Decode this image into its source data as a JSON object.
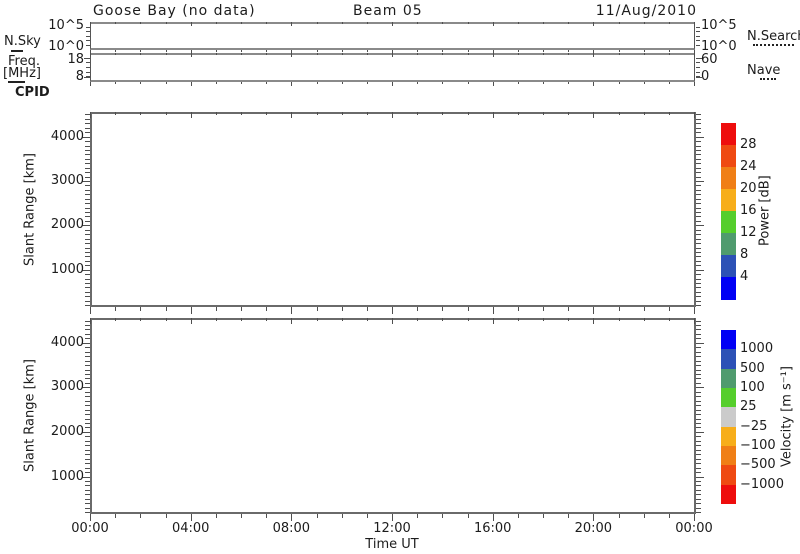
{
  "header": {
    "title": "Goose Bay (no data)",
    "beam": "Beam 05",
    "date": "11/Aug/2010"
  },
  "top_panels": {
    "nsky": {
      "label": "N.Sky",
      "left_ticks": [
        "10^5",
        "10^0"
      ],
      "right_ticks": [
        "10^5",
        "10^0"
      ],
      "right_legend": "N.Search"
    },
    "freq": {
      "label_line1": "Freq.",
      "label_line2": "[MHz]",
      "left_ticks": [
        "18",
        "8"
      ],
      "right_ticks": [
        "60",
        "0"
      ],
      "right_legend": "Nave"
    },
    "cpid_label": "CPID"
  },
  "range_panels": {
    "ylabel": "Slant Range [km]",
    "y_ticks": [
      "1000",
      "2000",
      "3000",
      "4000"
    ]
  },
  "time_axis": {
    "label": "Time UT",
    "ticks": [
      "00:00",
      "04:00",
      "08:00",
      "12:00",
      "16:00",
      "20:00",
      "00:00"
    ]
  },
  "colorbars": {
    "power": {
      "label": "Power [dB]",
      "tick_values": [
        "28",
        "24",
        "20",
        "16",
        "12",
        "8",
        "4"
      ],
      "colors_top_to_bottom": [
        "#EE0D0D",
        "#EF4A12",
        "#F07F16",
        "#F7AE1A",
        "#55CE2C",
        "#4F9B6E",
        "#2C51B6",
        "#0000F5"
      ]
    },
    "velocity": {
      "label": "Velocity [m s⁻¹]",
      "tick_values": [
        "1000",
        "500",
        "100",
        "25",
        "−25",
        "−100",
        "−500",
        "−1000"
      ],
      "colors_top_to_bottom": [
        "#0000F5",
        "#2C51B6",
        "#4F9B6E",
        "#55CE2C",
        "#CBCBCB",
        "#F7AE1A",
        "#F07F16",
        "#EF4A12",
        "#EE0D0D"
      ]
    }
  },
  "chart_data": [
    {
      "type": "line",
      "panel": "N.Sky / N.Search",
      "x_axis": {
        "label": "Time UT",
        "range_hours": [
          0,
          24
        ],
        "major_tick_labels": [
          "00:00",
          "04:00",
          "08:00",
          "12:00",
          "16:00",
          "20:00",
          "00:00"
        ],
        "minor_tick_hours": 1
      },
      "y_axis": {
        "scale": "log",
        "tick_labels": [
          "10^0",
          "10^5"
        ]
      },
      "legend": [
        {
          "name": "N.Sky",
          "linestyle": "solid"
        },
        {
          "name": "N.Search",
          "linestyle": "dotted"
        }
      ],
      "series": [],
      "annotation": "no data"
    },
    {
      "type": "line",
      "panel": "Freq [MHz] / Nave",
      "x_axis": {
        "range_hours": [
          0,
          24
        ],
        "minor_tick_hours": 1
      },
      "y_axis_left": {
        "ticks": [
          8,
          18
        ]
      },
      "y_axis_right": {
        "ticks": [
          0,
          60
        ]
      },
      "legend": [
        {
          "name": "Freq [MHz]",
          "linestyle": "solid"
        },
        {
          "name": "Nave",
          "linestyle": "dotted"
        }
      ],
      "series": [],
      "annotation": "no data"
    },
    {
      "type": "line",
      "panel": "CPID",
      "series": [],
      "annotation": "no data"
    },
    {
      "type": "scatter",
      "panel": "Power",
      "ylabel": "Slant Range [km]",
      "x_axis": {
        "label": "Time UT",
        "range_hours": [
          0,
          24
        ],
        "major_tick_labels": [
          "00:00",
          "04:00",
          "08:00",
          "12:00",
          "16:00",
          "20:00",
          "00:00"
        ]
      },
      "y_axis": {
        "range_km": [
          180,
          4555
        ],
        "major_ticks": [
          1000,
          2000,
          3000,
          4000
        ],
        "minor_tick_km": 100
      },
      "points": [],
      "colorbar": {
        "label": "Power [dB]",
        "boundary_values": [
          4,
          8,
          12,
          16,
          20,
          24,
          28
        ],
        "segment_colors_bottom_to_top": [
          "#0000F5",
          "#2C51B6",
          "#4F9B6E",
          "#55CE2C",
          "#F7AE1A",
          "#F07F16",
          "#EF4A12",
          "#EE0D0D"
        ]
      },
      "annotation": "no data"
    },
    {
      "type": "scatter",
      "panel": "Velocity",
      "ylabel": "Slant Range [km]",
      "x_axis": {
        "label": "Time UT",
        "range_hours": [
          0,
          24
        ],
        "major_tick_labels": [
          "00:00",
          "04:00",
          "08:00",
          "12:00",
          "16:00",
          "20:00",
          "00:00"
        ]
      },
      "y_axis": {
        "range_km": [
          180,
          4555
        ],
        "major_ticks": [
          1000,
          2000,
          3000,
          4000
        ],
        "minor_tick_km": 100
      },
      "points": [],
      "colorbar": {
        "label": "Velocity [m s⁻¹]",
        "boundary_values": [
          -1000,
          -500,
          -100,
          -25,
          25,
          100,
          500,
          1000
        ],
        "segment_colors_top_to_bottom": [
          "#0000F5",
          "#2C51B6",
          "#4F9B6E",
          "#55CE2C",
          "#CBCBCB",
          "#F7AE1A",
          "#F07F16",
          "#EF4A12",
          "#EE0D0D"
        ]
      },
      "annotation": "no data"
    }
  ]
}
